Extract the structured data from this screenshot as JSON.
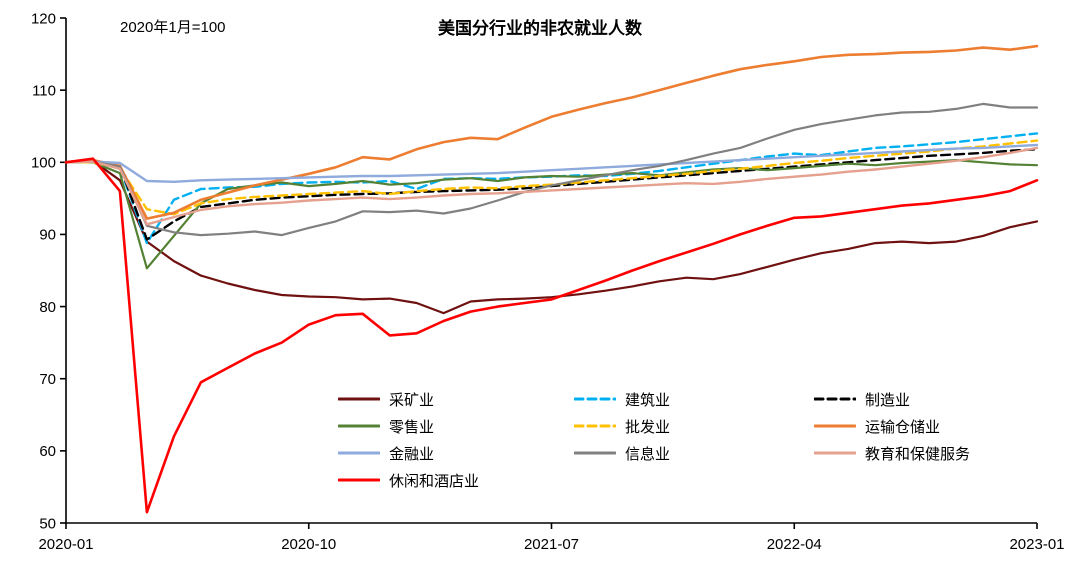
{
  "chart_data": {
    "type": "line",
    "title": "美国分行业的非农就业人数",
    "subtitle": "2020年1月=100",
    "xlabel": "",
    "ylabel": "",
    "ylim": [
      50,
      120
    ],
    "x_range_months": 36,
    "grid": false,
    "legend_position": "inside-bottom-center",
    "y_ticks": [
      50,
      60,
      70,
      80,
      90,
      100,
      110,
      120
    ],
    "x_ticks": [
      {
        "month": 0,
        "label": "2020-01"
      },
      {
        "month": 9,
        "label": "2020-10"
      },
      {
        "month": 18,
        "label": "2021-07"
      },
      {
        "month": 27,
        "label": "2022-04"
      },
      {
        "month": 36,
        "label": "2023-01"
      }
    ],
    "series": [
      {
        "name": "采矿业",
        "color": "#6f1110",
        "dash": null,
        "width": 2.2,
        "values": [
          100,
          100.2,
          97.5,
          89,
          86.3,
          84.3,
          83.2,
          82.3,
          81.6,
          81.4,
          81.3,
          81.0,
          81.1,
          80.5,
          79.1,
          80.7,
          81.0,
          81.1,
          81.3,
          81.7,
          82.2,
          82.8,
          83.5,
          84.0,
          83.8,
          84.5,
          85.5,
          86.5,
          87.4,
          88.0,
          88.8,
          89.0,
          88.8,
          89.0,
          89.8,
          91.0,
          91.8
        ]
      },
      {
        "name": "建筑业",
        "color": "#00b0f0",
        "dash": "9 5",
        "width": 2.4,
        "values": [
          100,
          100.2,
          99.3,
          88.8,
          94.8,
          96.3,
          96.5,
          96.6,
          97.0,
          97.2,
          97.3,
          97.2,
          97.4,
          96.3,
          97.7,
          97.8,
          97.7,
          97.9,
          98.0,
          98.2,
          98.1,
          98.4,
          98.8,
          99.3,
          99.8,
          100.3,
          100.8,
          101.2,
          101.0,
          101.5,
          102.0,
          102.2,
          102.5,
          102.8,
          103.2,
          103.6,
          104.0
        ]
      },
      {
        "name": "制造业",
        "color": "#000000",
        "dash": "9 5",
        "width": 2.4,
        "values": [
          100,
          100.1,
          99.5,
          89.3,
          91.8,
          93.8,
          94.3,
          94.8,
          95.1,
          95.3,
          95.5,
          95.6,
          95.7,
          95.9,
          96.0,
          96.1,
          96.2,
          96.4,
          96.7,
          97.0,
          97.3,
          97.6,
          97.9,
          98.2,
          98.5,
          98.8,
          99.1,
          99.4,
          99.7,
          100.0,
          100.3,
          100.6,
          100.9,
          101.1,
          101.3,
          101.6,
          101.8
        ]
      },
      {
        "name": "零售业",
        "color": "#548235",
        "dash": null,
        "width": 2.2,
        "values": [
          100,
          100.0,
          98.5,
          85.3,
          89.8,
          94.3,
          96.3,
          96.8,
          97.2,
          96.7,
          97.0,
          97.4,
          96.9,
          97.1,
          97.6,
          97.8,
          97.4,
          97.9,
          98.1,
          98.0,
          98.3,
          98.5,
          98.2,
          98.6,
          99.0,
          99.2,
          98.9,
          99.2,
          99.5,
          99.8,
          99.6,
          99.9,
          100.1,
          100.3,
          100.0,
          99.7,
          99.6
        ]
      },
      {
        "name": "批发业",
        "color": "#ffc000",
        "dash": "9 5",
        "width": 2.4,
        "values": [
          100,
          100.0,
          99.2,
          93.5,
          92.8,
          94.3,
          94.9,
          95.2,
          95.4,
          95.6,
          95.8,
          96.0,
          95.6,
          96.0,
          96.3,
          96.5,
          96.4,
          96.7,
          96.9,
          97.2,
          97.5,
          97.8,
          98.1,
          98.4,
          98.8,
          99.1,
          99.5,
          99.9,
          100.2,
          100.6,
          100.9,
          101.2,
          101.5,
          101.9,
          102.2,
          102.6,
          103.0
        ]
      },
      {
        "name": "运输仓储业",
        "color": "#ed7d31",
        "dash": null,
        "width": 2.6,
        "values": [
          100,
          100.3,
          99.5,
          92.2,
          93.0,
          94.8,
          95.8,
          96.8,
          97.6,
          98.4,
          99.3,
          100.7,
          100.4,
          101.8,
          102.8,
          103.4,
          103.2,
          104.8,
          106.3,
          107.3,
          108.2,
          109.0,
          110.0,
          111.0,
          112.0,
          112.9,
          113.5,
          114.0,
          114.6,
          114.9,
          115.0,
          115.2,
          115.3,
          115.5,
          115.9,
          115.6,
          116.1
        ]
      },
      {
        "name": "金融业",
        "color": "#8faadc",
        "dash": null,
        "width": 2.4,
        "values": [
          100,
          100.1,
          99.9,
          97.4,
          97.3,
          97.5,
          97.6,
          97.7,
          97.8,
          97.9,
          98.0,
          98.1,
          98.1,
          98.2,
          98.3,
          98.4,
          98.5,
          98.7,
          98.9,
          99.1,
          99.3,
          99.5,
          99.7,
          99.9,
          100.1,
          100.3,
          100.5,
          100.7,
          100.9,
          101.1,
          101.3,
          101.5,
          101.7,
          101.9,
          102.0,
          102.2,
          102.4
        ]
      },
      {
        "name": "信息业",
        "color": "#808080",
        "dash": null,
        "width": 2.2,
        "values": [
          100,
          100.1,
          99.4,
          91.2,
          90.3,
          89.9,
          90.1,
          90.4,
          89.9,
          90.9,
          91.8,
          93.2,
          93.1,
          93.3,
          92.9,
          93.6,
          94.7,
          95.9,
          96.8,
          97.5,
          98.2,
          98.9,
          99.5,
          100.3,
          101.2,
          102.0,
          103.3,
          104.5,
          105.3,
          105.9,
          106.5,
          106.9,
          107.0,
          107.4,
          108.1,
          107.6,
          107.6
        ]
      },
      {
        "name": "教育和保健服务",
        "color": "#e6a08e",
        "dash": null,
        "width": 2.4,
        "values": [
          100,
          100.1,
          99.1,
          91.4,
          92.4,
          93.4,
          93.9,
          94.2,
          94.4,
          94.7,
          94.9,
          95.1,
          94.9,
          95.1,
          95.4,
          95.6,
          95.7,
          95.9,
          96.1,
          96.3,
          96.5,
          96.7,
          96.9,
          97.1,
          97.0,
          97.3,
          97.7,
          98.0,
          98.3,
          98.7,
          99.0,
          99.4,
          99.8,
          100.2,
          100.7,
          101.3,
          102.0
        ]
      },
      {
        "name": "休闲和酒店业",
        "color": "#ff0000",
        "dash": null,
        "width": 2.6,
        "values": [
          100,
          100.5,
          96.0,
          51.5,
          62.0,
          69.5,
          71.5,
          73.5,
          75.0,
          77.5,
          78.8,
          79.0,
          76.0,
          76.3,
          78.0,
          79.3,
          80.0,
          80.5,
          81.0,
          82.3,
          83.6,
          85.0,
          86.3,
          87.5,
          88.7,
          90.0,
          91.2,
          92.3,
          92.5,
          93.0,
          93.5,
          94.0,
          94.3,
          94.8,
          95.3,
          96.0,
          97.5
        ]
      }
    ]
  }
}
